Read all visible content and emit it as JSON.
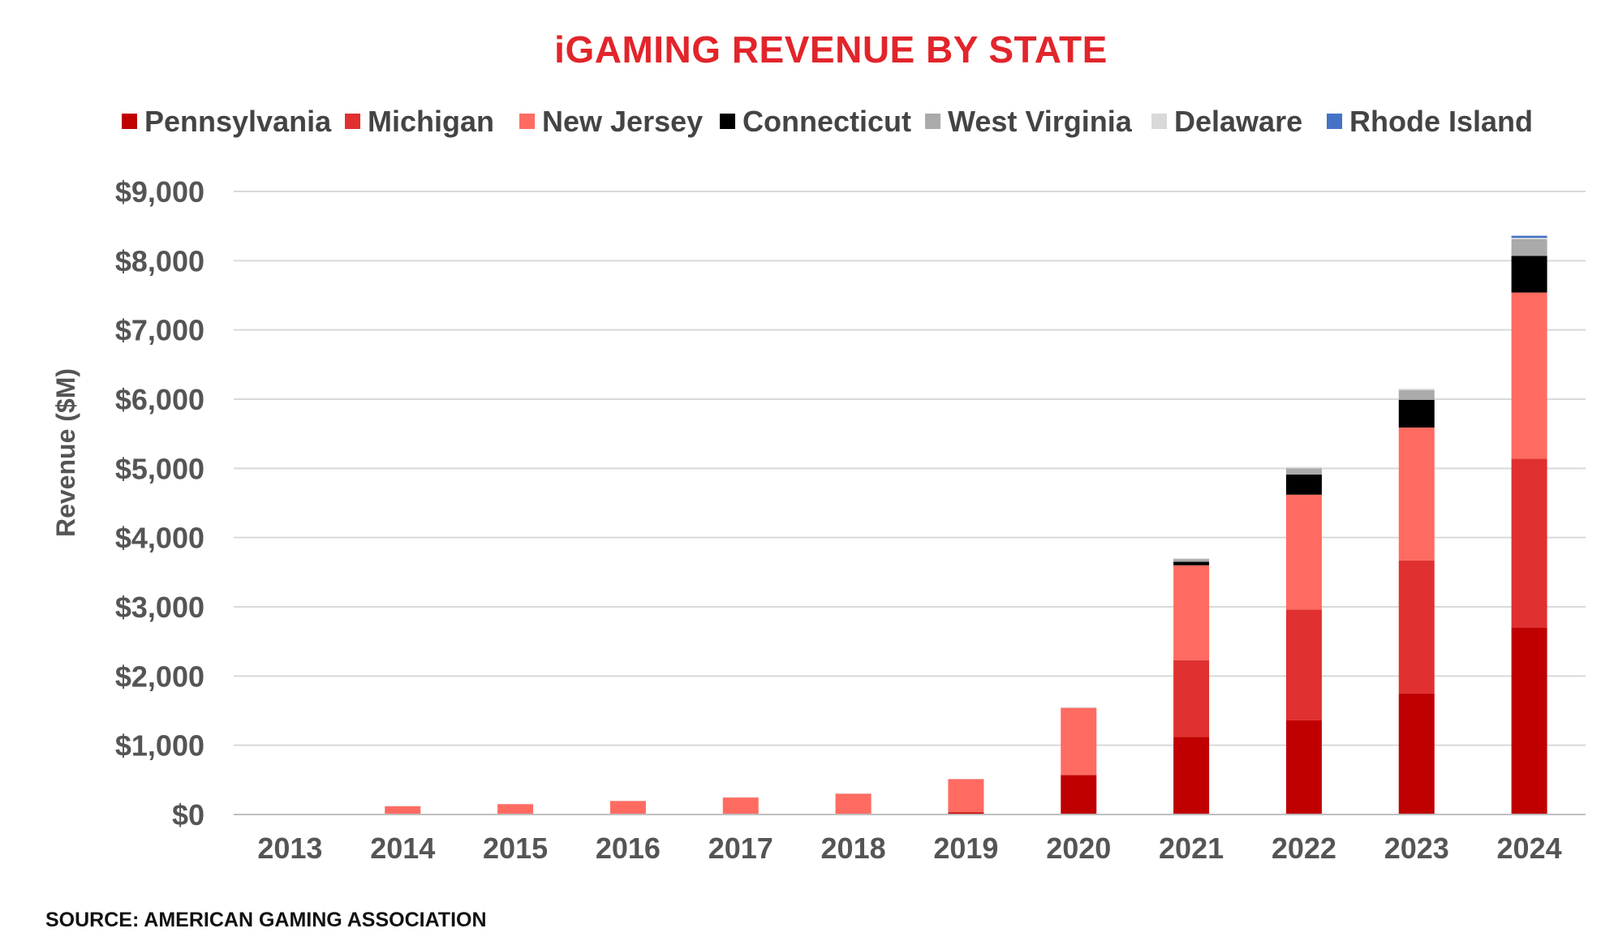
{
  "chart_data": {
    "type": "bar",
    "stacked": true,
    "title": "iGAMING REVENUE BY STATE",
    "ylabel": "Revenue ($M)",
    "xlabel": "",
    "source": "SOURCE: AMERICAN GAMING ASSOCIATION",
    "categories": [
      "2013",
      "2014",
      "2015",
      "2016",
      "2017",
      "2018",
      "2019",
      "2020",
      "2021",
      "2022",
      "2023",
      "2024"
    ],
    "ylim": [
      0,
      9000
    ],
    "yticks": [
      0,
      1000,
      2000,
      3000,
      4000,
      5000,
      6000,
      7000,
      8000,
      9000
    ],
    "ytick_labels": [
      "$0",
      "$1,000",
      "$2,000",
      "$3,000",
      "$4,000",
      "$5,000",
      "$6,000",
      "$7,000",
      "$8,000",
      "$9,000"
    ],
    "grid": true,
    "legend_position": "top",
    "series": [
      {
        "name": "Pennsylvania",
        "color": "#c00000",
        "values": [
          0,
          0,
          0,
          0,
          0,
          0,
          30,
          570,
          1120,
          1360,
          1750,
          2700
        ]
      },
      {
        "name": "Michigan",
        "color": "#e03030",
        "values": [
          0,
          0,
          0,
          0,
          0,
          0,
          0,
          0,
          1110,
          1600,
          1920,
          2440
        ]
      },
      {
        "name": "New Jersey",
        "color": "#ff6b61",
        "values": [
          5,
          120,
          150,
          195,
          245,
          300,
          480,
          970,
          1370,
          1660,
          1920,
          2400
        ]
      },
      {
        "name": "Connecticut",
        "color": "#000000",
        "values": [
          0,
          0,
          0,
          0,
          0,
          0,
          0,
          0,
          50,
          290,
          400,
          530
        ]
      },
      {
        "name": "West Virginia",
        "color": "#aaaaaa",
        "values": [
          0,
          0,
          0,
          0,
          0,
          0,
          0,
          0,
          40,
          90,
          140,
          240
        ]
      },
      {
        "name": "Delaware",
        "color": "#d9d9d9",
        "values": [
          5,
          5,
          5,
          5,
          5,
          5,
          5,
          10,
          10,
          20,
          20,
          20
        ]
      },
      {
        "name": "Rhode Island",
        "color": "#4472c4",
        "values": [
          0,
          0,
          0,
          0,
          0,
          0,
          0,
          0,
          0,
          0,
          0,
          30
        ]
      }
    ]
  }
}
